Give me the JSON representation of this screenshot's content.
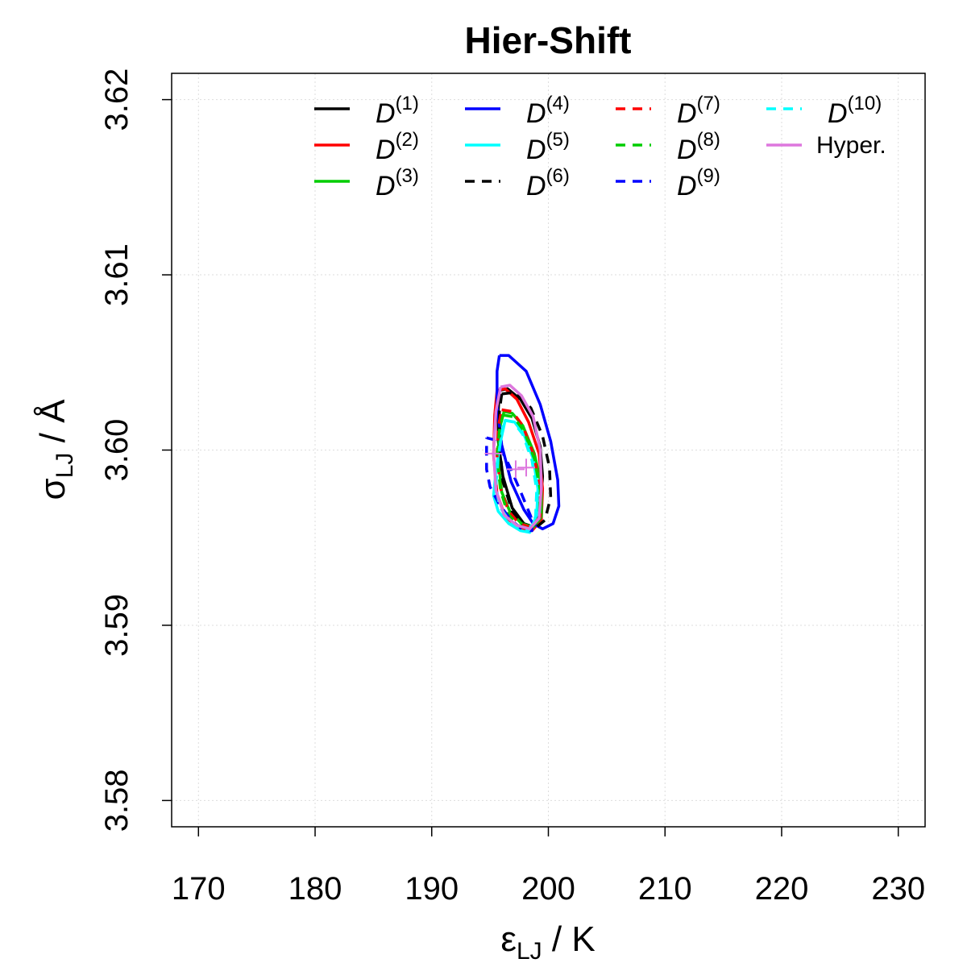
{
  "chart_data": {
    "type": "line",
    "title": "Hier-Shift",
    "xlabel": {
      "main": "ε",
      "sub": "LJ",
      "rest": " / K"
    },
    "ylabel": {
      "main": "σ",
      "sub": "LJ",
      "rest": " / Å"
    },
    "xlim": [
      167.7,
      232.3
    ],
    "ylim": [
      3.5785,
      3.6215
    ],
    "x_ticks": [
      170,
      180,
      190,
      200,
      210,
      220,
      230
    ],
    "x_tick_labels": [
      "170",
      "180",
      "190",
      "200",
      "210",
      "220",
      "230"
    ],
    "y_ticks": [
      3.58,
      3.59,
      3.6,
      3.61,
      3.62
    ],
    "y_tick_labels": [
      "3.58",
      "3.59",
      "3.60",
      "3.61",
      "3.62"
    ],
    "grid": true,
    "legend_position": "top",
    "series": [
      {
        "name": "D",
        "sup": "(1)",
        "color": "#000000",
        "dash": "solid",
        "points": [
          [
            195.8,
            3.6034
          ],
          [
            196.5,
            3.6035
          ],
          [
            197.6,
            3.6029
          ],
          [
            198.6,
            3.6018
          ],
          [
            199.3,
            3.6002
          ],
          [
            199.5,
            3.5985
          ],
          [
            199.3,
            3.5965
          ],
          [
            198.8,
            3.5956
          ],
          [
            197.9,
            3.5958
          ],
          [
            196.9,
            3.5967
          ],
          [
            196.1,
            3.5985
          ],
          [
            195.7,
            3.6005
          ],
          [
            195.7,
            3.6022
          ],
          [
            195.8,
            3.6034
          ]
        ]
      },
      {
        "name": "D",
        "sup": "(2)",
        "color": "#ff0000",
        "dash": "solid",
        "points": [
          [
            195.6,
            3.6034
          ],
          [
            196.3,
            3.6035
          ],
          [
            197.3,
            3.6029
          ],
          [
            198.3,
            3.6016
          ],
          [
            199.2,
            3.5998
          ],
          [
            199.5,
            3.5978
          ],
          [
            199.4,
            3.596
          ],
          [
            198.6,
            3.5954
          ],
          [
            197.4,
            3.5956
          ],
          [
            196.3,
            3.5962
          ],
          [
            195.6,
            3.5975
          ],
          [
            195.3,
            3.5997
          ],
          [
            195.4,
            3.602
          ],
          [
            195.6,
            3.6034
          ]
        ]
      },
      {
        "name": "D",
        "sup": "(3)",
        "color": "#00cd00",
        "dash": "solid",
        "points": [
          [
            196.2,
            3.6022
          ],
          [
            196.9,
            3.6021
          ],
          [
            197.8,
            3.6014
          ],
          [
            198.8,
            3.5998
          ],
          [
            199.4,
            3.598
          ],
          [
            199.4,
            3.5962
          ],
          [
            198.7,
            3.5956
          ],
          [
            197.7,
            3.5958
          ],
          [
            196.7,
            3.5965
          ],
          [
            196.0,
            3.5976
          ],
          [
            195.7,
            3.5995
          ],
          [
            195.8,
            3.6012
          ],
          [
            196.2,
            3.6022
          ]
        ]
      },
      {
        "name": "D",
        "sup": "(4)",
        "color": "#0000ff",
        "dash": "solid",
        "points": [
          [
            195.8,
            3.6054
          ],
          [
            196.6,
            3.6054
          ],
          [
            198.1,
            3.6045
          ],
          [
            199.3,
            3.6026
          ],
          [
            200.2,
            3.6005
          ],
          [
            200.8,
            3.5983
          ],
          [
            200.9,
            3.5968
          ],
          [
            200.4,
            3.5958
          ],
          [
            199.5,
            3.5955
          ],
          [
            198.7,
            3.5958
          ],
          [
            197.9,
            3.5966
          ],
          [
            196.8,
            3.5982
          ],
          [
            196.0,
            3.6003
          ],
          [
            195.6,
            3.6025
          ],
          [
            195.6,
            3.6045
          ],
          [
            195.8,
            3.6054
          ]
        ]
      },
      {
        "name": "D",
        "sup": "(5)",
        "color": "#00ffff",
        "dash": "solid",
        "points": [
          [
            196.3,
            3.6017
          ],
          [
            197.1,
            3.6016
          ],
          [
            197.9,
            3.6009
          ],
          [
            198.7,
            3.5995
          ],
          [
            199.1,
            3.5978
          ],
          [
            199.0,
            3.5963
          ],
          [
            198.4,
            3.5953
          ],
          [
            197.6,
            3.5954
          ],
          [
            196.6,
            3.5958
          ],
          [
            195.7,
            3.5965
          ],
          [
            195.3,
            3.5974
          ],
          [
            195.5,
            3.5988
          ],
          [
            195.9,
            3.6005
          ],
          [
            196.3,
            3.6017
          ]
        ]
      },
      {
        "name": "D",
        "sup": "(6)",
        "color": "#000000",
        "dash": "dash",
        "points": [
          [
            196.0,
            3.6032
          ],
          [
            197.2,
            3.6033
          ],
          [
            198.5,
            3.6024
          ],
          [
            199.5,
            3.6008
          ],
          [
            200.1,
            3.599
          ],
          [
            200.2,
            3.5973
          ],
          [
            199.7,
            3.596
          ],
          [
            198.8,
            3.5955
          ],
          [
            197.9,
            3.5957
          ],
          [
            196.9,
            3.5965
          ],
          [
            196.1,
            3.5982
          ],
          [
            195.8,
            3.6005
          ],
          [
            195.8,
            3.6022
          ],
          [
            196.0,
            3.6032
          ]
        ]
      },
      {
        "name": "D",
        "sup": "(7)",
        "color": "#ff0000",
        "dash": "dash",
        "points": [
          [
            196.0,
            3.6023
          ],
          [
            196.9,
            3.6022
          ],
          [
            197.8,
            3.6014
          ],
          [
            198.7,
            3.5998
          ],
          [
            199.3,
            3.598
          ],
          [
            199.3,
            3.5962
          ],
          [
            198.5,
            3.5956
          ],
          [
            197.5,
            3.5958
          ],
          [
            196.6,
            3.5965
          ],
          [
            195.9,
            3.5978
          ],
          [
            195.6,
            3.5997
          ],
          [
            195.7,
            3.6013
          ],
          [
            196.0,
            3.6023
          ]
        ]
      },
      {
        "name": "D",
        "sup": "(8)",
        "color": "#00cd00",
        "dash": "dash",
        "points": [
          [
            196.1,
            3.602
          ],
          [
            197.0,
            3.6019
          ],
          [
            197.9,
            3.6011
          ],
          [
            198.8,
            3.5995
          ],
          [
            199.3,
            3.5977
          ],
          [
            199.2,
            3.596
          ],
          [
            198.4,
            3.5955
          ],
          [
            197.4,
            3.5957
          ],
          [
            196.5,
            3.5964
          ],
          [
            195.9,
            3.5977
          ],
          [
            195.6,
            3.5996
          ],
          [
            195.8,
            3.6011
          ],
          [
            196.1,
            3.602
          ]
        ]
      },
      {
        "name": "D",
        "sup": "(9)",
        "color": "#0000ff",
        "dash": "dash",
        "points": [
          [
            194.7,
            3.6007
          ],
          [
            195.3,
            3.6006
          ],
          [
            195.9,
            3.6001
          ],
          [
            196.8,
            3.5989
          ],
          [
            197.7,
            3.5975
          ],
          [
            198.5,
            3.5962
          ],
          [
            198.6,
            3.5954
          ],
          [
            197.9,
            3.5954
          ],
          [
            196.8,
            3.596
          ],
          [
            195.8,
            3.5969
          ],
          [
            195.0,
            3.5979
          ],
          [
            194.7,
            3.5989
          ],
          [
            194.7,
            3.6
          ],
          [
            194.7,
            3.6007
          ]
        ]
      },
      {
        "name": "D",
        "sup": "(10)",
        "color": "#00ffff",
        "dash": "dash",
        "points": [
          [
            196.2,
            3.6017
          ],
          [
            197.0,
            3.6016
          ],
          [
            197.8,
            3.6009
          ],
          [
            198.6,
            3.5994
          ],
          [
            199.0,
            3.5977
          ],
          [
            198.9,
            3.5962
          ],
          [
            198.3,
            3.5954
          ],
          [
            197.5,
            3.5955
          ],
          [
            196.6,
            3.596
          ],
          [
            195.8,
            3.5968
          ],
          [
            195.5,
            3.598
          ],
          [
            195.7,
            3.5996
          ],
          [
            196.0,
            3.6009
          ],
          [
            196.2,
            3.6017
          ]
        ]
      },
      {
        "name": "Hyper.",
        "color": "#dd77dd",
        "dash": "solid",
        "points": [
          [
            195.9,
            3.6036
          ],
          [
            196.7,
            3.6037
          ],
          [
            197.7,
            3.6031
          ],
          [
            198.7,
            3.6019
          ],
          [
            199.3,
            3.6
          ],
          [
            199.4,
            3.5978
          ],
          [
            199.2,
            3.5961
          ],
          [
            198.4,
            3.5955
          ],
          [
            197.3,
            3.5957
          ],
          [
            196.2,
            3.5963
          ],
          [
            195.5,
            3.5977
          ],
          [
            195.3,
            3.5999
          ],
          [
            195.5,
            3.6022
          ],
          [
            195.9,
            3.6036
          ]
        ]
      }
    ],
    "markers": [
      {
        "color": "#dd77dd",
        "symbol": "plus",
        "x": 197.2,
        "y": 3.5989
      },
      {
        "color": "#dd77dd",
        "symbol": "plus",
        "x": 195.3,
        "y": 3.5998
      },
      {
        "color": "#dd77dd",
        "symbol": "plus",
        "x": 198.1,
        "y": 3.599
      }
    ]
  }
}
